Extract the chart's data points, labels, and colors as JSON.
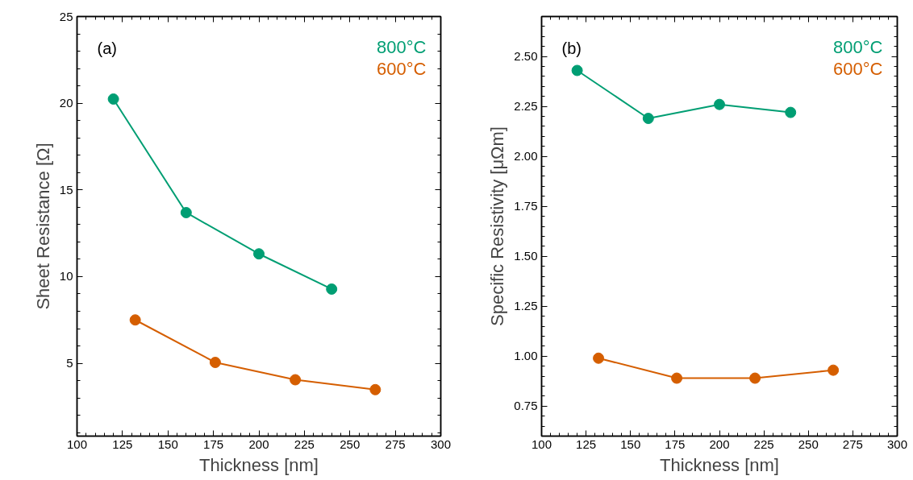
{
  "chart_data": [
    {
      "type": "line",
      "xlabel": "Thickness [nm]",
      "ylabel": "Sheet Resistance [Ω]",
      "annotations": [
        "(a)"
      ],
      "xlim": [
        100,
        300
      ],
      "xticks": [
        100,
        125,
        150,
        175,
        200,
        225,
        250,
        275,
        300
      ],
      "ylim": [
        0.8,
        25
      ],
      "yticks": [
        5,
        10,
        15,
        20,
        25
      ],
      "marker": "circle",
      "legend": "top right",
      "grid": false,
      "series": [
        {
          "name": "800°C",
          "color": "#009e73",
          "x": [
            120,
            160,
            200,
            240
          ],
          "values": [
            20.24,
            13.69,
            11.31,
            9.28
          ]
        },
        {
          "name": "600°C",
          "color": "#d55e00",
          "x": [
            132,
            176,
            220,
            264
          ],
          "values": [
            7.5,
            5.05,
            4.05,
            3.48
          ]
        }
      ]
    },
    {
      "type": "line",
      "xlabel": "Thickness [nm]",
      "ylabel": "Specific Resistivity [μΩm]",
      "annotations": [
        "(b)"
      ],
      "xlim": [
        100,
        300
      ],
      "xticks": [
        100,
        125,
        150,
        175,
        200,
        225,
        250,
        275,
        300
      ],
      "ylim": [
        0.6,
        2.7
      ],
      "yticks": [
        {
          "value": 0.75,
          "label": "0.75"
        },
        {
          "value": 1,
          "label": "1.00"
        },
        {
          "value": 1.25,
          "label": "1.25"
        },
        {
          "value": 1.5,
          "label": "1.50"
        },
        {
          "value": 1.75,
          "label": "1.75"
        },
        {
          "value": 2,
          "label": "2.00"
        },
        {
          "value": 2.25,
          "label": "2.25"
        },
        {
          "value": 2.5,
          "label": "2.50"
        }
      ],
      "marker": "circle",
      "legend": "top right",
      "grid": false,
      "series": [
        {
          "name": "800°C",
          "color": "#009e73",
          "x": [
            120,
            160,
            200,
            240
          ],
          "values": [
            2.43,
            2.19,
            2.26,
            2.22
          ]
        },
        {
          "name": "600°C",
          "color": "#d55e00",
          "x": [
            132,
            176,
            220,
            264
          ],
          "values": [
            0.99,
            0.89,
            0.89,
            0.93
          ]
        }
      ]
    }
  ]
}
